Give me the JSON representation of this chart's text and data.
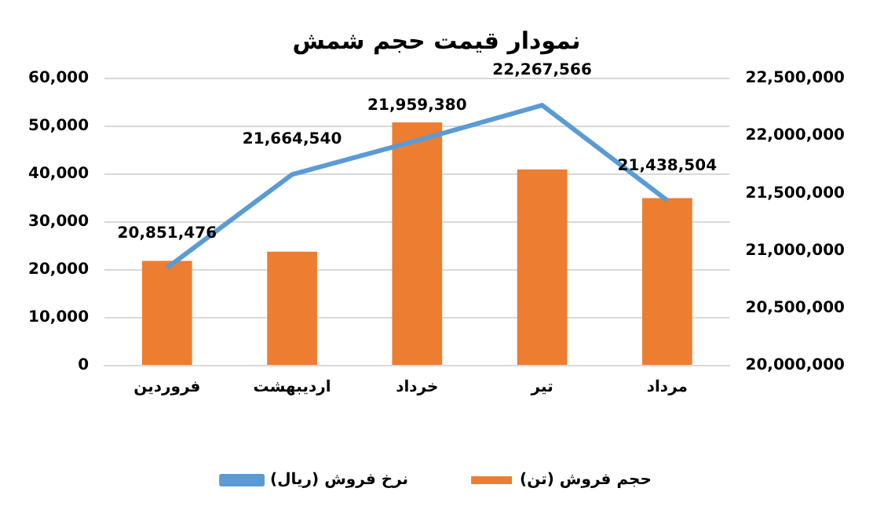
{
  "chart_data": {
    "type": "bar",
    "title": "نمودار قیمت حجم شمش",
    "categories": [
      "فروردین",
      "اردیبهشت",
      "خرداد",
      "تیر",
      "مرداد"
    ],
    "series": [
      {
        "name": "حجم فروش (تن)",
        "type": "bar",
        "color": "#ed7d31",
        "values": [
          21900,
          23800,
          50800,
          41000,
          35000
        ]
      },
      {
        "name": "نرخ فروش (ریال)",
        "type": "line",
        "axis": "y2",
        "color": "#5b9bd5",
        "values": [
          20851476,
          21664540,
          21959380,
          22267566,
          21438504
        ],
        "value_labels": [
          "20,851,476",
          "21,664,540",
          "21,959,380",
          "22,267,566",
          "21,438,504"
        ]
      }
    ],
    "ylim": [
      0,
      60000
    ],
    "yticks": [
      0,
      {
        "value": 10000,
        "label": "10,000"
      },
      {
        "value": 20000,
        "label": "20,000"
      },
      {
        "value": 30000,
        "label": "30,000"
      },
      {
        "value": 40000,
        "label": "40,000"
      },
      {
        "value": 50000,
        "label": "50,000"
      },
      {
        "value": 60000,
        "label": "60,000"
      }
    ],
    "y2lim": [
      20000000,
      22500000
    ],
    "y2ticks": [
      {
        "value": 20000000,
        "label": "20,000,000"
      },
      {
        "value": 20500000,
        "label": "20,500,000"
      },
      {
        "value": 21000000,
        "label": "21,000,000"
      },
      {
        "value": 21500000,
        "label": "21,500,000"
      },
      {
        "value": 22000000,
        "label": "22,000,000"
      },
      {
        "value": 22500000,
        "label": "22,500,000"
      }
    ],
    "grid": "y",
    "legend": "bottom",
    "marker": "none"
  }
}
